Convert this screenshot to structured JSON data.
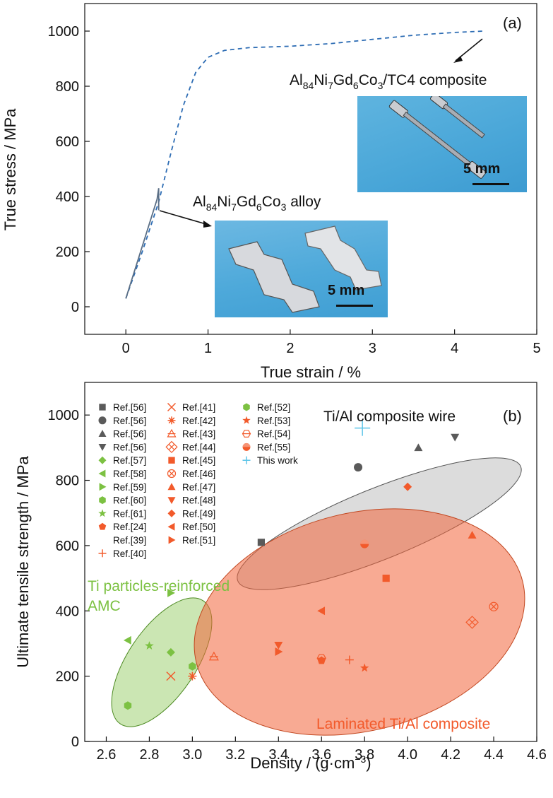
{
  "chart_data": [
    {
      "panel": "(a)",
      "type": "line",
      "xlabel": "True strain / %",
      "ylabel": "True stress / MPa",
      "xlim": [
        -0.5,
        5
      ],
      "ylim": [
        -100,
        1100
      ],
      "xticks": [
        "0",
        "1",
        "2",
        "3",
        "4",
        "5"
      ],
      "yticks": [
        "0",
        "200",
        "400",
        "600",
        "800",
        "1000"
      ],
      "series": [
        {
          "label": "Al84Ni7Gd6Co3/TC4 composite",
          "style": "dashed",
          "color": "#2e6db4",
          "x": [
            0,
            0.2,
            0.4,
            0.55,
            0.7,
            0.85,
            1.0,
            1.2,
            1.5,
            2.0,
            2.5,
            3.0,
            3.5,
            4.0,
            4.35
          ],
          "y": [
            30,
            200,
            380,
            560,
            730,
            850,
            905,
            930,
            940,
            945,
            955,
            970,
            985,
            995,
            1000
          ]
        },
        {
          "label": "Al84Ni7Gd6Co3 alloy",
          "style": "solid",
          "color": "#5a6e85",
          "x": [
            0,
            0.38,
            0.4,
            0.4
          ],
          "y": [
            30,
            390,
            430,
            350
          ]
        }
      ],
      "annotations": {
        "composite_label": {
          "main": "Al",
          "s1": "84",
          "t1": "Ni",
          "s2": "7",
          "t2": "Gd",
          "s3": "6",
          "t3": "Co",
          "s4": "3",
          "tail": "/TC4 composite"
        },
        "alloy_label": {
          "main": "Al",
          "s1": "84",
          "t1": "Ni",
          "s2": "7",
          "t2": "Gd",
          "s3": "6",
          "t3": "Co",
          "s4": "3",
          "tail": " alloy"
        },
        "scale_a": "5 mm",
        "scale_b": "5 mm"
      }
    },
    {
      "panel": "(b)",
      "type": "scatter",
      "xlabel_main": "Density / (g·cm",
      "xlabel_sup": "−3",
      "xlabel_end": ")",
      "ylabel": "Ultimate tensile strength / MPa",
      "xlim": [
        2.5,
        4.6
      ],
      "ylim": [
        0,
        1100
      ],
      "xticks": [
        "2.6",
        "2.8",
        "3.0",
        "3.2",
        "3.4",
        "3.6",
        "3.8",
        "4.0",
        "4.2",
        "4.4",
        "4.6"
      ],
      "yticks": [
        "0",
        "200",
        "400",
        "600",
        "800",
        "1000"
      ],
      "regions": {
        "wire": "Ti/Al composite wire",
        "particles_1": "Ti particles-reinforced",
        "particles_2": "AMC",
        "laminated": "Laminated Ti/Al composite"
      },
      "legend": [
        {
          "name": "Ref.[56]",
          "marker": "square",
          "color": "#5a5a5a"
        },
        {
          "name": "Ref.[56]",
          "marker": "circle",
          "color": "#5a5a5a"
        },
        {
          "name": "Ref.[56]",
          "marker": "tri-up",
          "color": "#5a5a5a"
        },
        {
          "name": "Ref.[56]",
          "marker": "tri-down",
          "color": "#5a5a5a"
        },
        {
          "name": "Ref.[57]",
          "marker": "diamond",
          "color": "#7cc142"
        },
        {
          "name": "Ref.[58]",
          "marker": "tri-left",
          "color": "#7cc142"
        },
        {
          "name": "Ref.[59]",
          "marker": "tri-right",
          "color": "#7cc142"
        },
        {
          "name": "Ref.[60]",
          "marker": "hexagon",
          "color": "#7cc142"
        },
        {
          "name": "Ref.[61]",
          "marker": "star",
          "color": "#7cc142"
        },
        {
          "name": "Ref.[24]",
          "marker": "pentagon",
          "color": "#f25a2b"
        },
        {
          "name": "Ref.[39]",
          "marker": "none",
          "color": "#f25a2b"
        },
        {
          "name": "Ref.[40]",
          "marker": "plus",
          "color": "#f25a2b"
        },
        {
          "name": "Ref.[41]",
          "marker": "x",
          "color": "#f25a2b"
        },
        {
          "name": "Ref.[42]",
          "marker": "asterisk",
          "color": "#f25a2b"
        },
        {
          "name": "Ref.[43]",
          "marker": "tri-plus",
          "color": "#f25a2b"
        },
        {
          "name": "Ref.[44]",
          "marker": "xsquare",
          "color": "#f25a2b"
        },
        {
          "name": "Ref.[45]",
          "marker": "square",
          "color": "#f25a2b"
        },
        {
          "name": "Ref.[46]",
          "marker": "xcircle",
          "color": "#f25a2b"
        },
        {
          "name": "Ref.[47]",
          "marker": "tri-up",
          "color": "#f25a2b"
        },
        {
          "name": "Ref.[48]",
          "marker": "tri-down",
          "color": "#f25a2b"
        },
        {
          "name": "Ref.[49]",
          "marker": "diamond",
          "color": "#f25a2b"
        },
        {
          "name": "Ref.[50]",
          "marker": "tri-left",
          "color": "#f25a2b"
        },
        {
          "name": "Ref.[51]",
          "marker": "tri-right",
          "color": "#f25a2b"
        },
        {
          "name": "Ref.[52]",
          "marker": "hexagon",
          "color": "#7cc142"
        },
        {
          "name": "Ref.[53]",
          "marker": "star",
          "color": "#f25a2b"
        },
        {
          "name": "Ref.[54]",
          "marker": "hexline",
          "color": "#f25a2b"
        },
        {
          "name": "Ref.[55]",
          "marker": "halfcircle",
          "color": "#f25a2b"
        },
        {
          "name": "This work",
          "marker": "plus",
          "color": "#5cc4e8"
        }
      ],
      "points": [
        {
          "x": 3.32,
          "y": 610,
          "marker": "square",
          "color": "#5a5a5a"
        },
        {
          "x": 3.77,
          "y": 840,
          "marker": "circle",
          "color": "#5a5a5a"
        },
        {
          "x": 4.05,
          "y": 900,
          "marker": "tri-up",
          "color": "#5a5a5a"
        },
        {
          "x": 4.22,
          "y": 932,
          "marker": "tri-down",
          "color": "#5a5a5a"
        },
        {
          "x": 3.79,
          "y": 960,
          "marker": "plus",
          "color": "#5cc4e8"
        },
        {
          "x": 4.0,
          "y": 780,
          "marker": "diamond",
          "color": "#f25a2b"
        },
        {
          "x": 2.7,
          "y": 110,
          "marker": "hexagon",
          "color": "#7cc142"
        },
        {
          "x": 2.7,
          "y": 310,
          "marker": "tri-left",
          "color": "#7cc142"
        },
        {
          "x": 2.8,
          "y": 293,
          "marker": "star",
          "color": "#7cc142"
        },
        {
          "x": 2.9,
          "y": 273,
          "marker": "diamond",
          "color": "#7cc142"
        },
        {
          "x": 2.9,
          "y": 455,
          "marker": "tri-right",
          "color": "#7cc142"
        },
        {
          "x": 3.0,
          "y": 230,
          "marker": "hexagon",
          "color": "#7cc142"
        },
        {
          "x": 2.9,
          "y": 200,
          "marker": "x",
          "color": "#f25a2b"
        },
        {
          "x": 3.0,
          "y": 200,
          "marker": "asterisk",
          "color": "#f25a2b"
        },
        {
          "x": 3.1,
          "y": 260,
          "marker": "tri-plus",
          "color": "#f25a2b"
        },
        {
          "x": 3.4,
          "y": 295,
          "marker": "tri-down",
          "color": "#f25a2b"
        },
        {
          "x": 3.4,
          "y": 275,
          "marker": "tri-right",
          "color": "#f25a2b"
        },
        {
          "x": 3.6,
          "y": 400,
          "marker": "tri-left",
          "color": "#f25a2b"
        },
        {
          "x": 3.6,
          "y": 255,
          "marker": "hexline",
          "color": "#f25a2b"
        },
        {
          "x": 3.6,
          "y": 248,
          "marker": "pentagon",
          "color": "#f25a2b"
        },
        {
          "x": 3.73,
          "y": 250,
          "marker": "plus",
          "color": "#f25a2b"
        },
        {
          "x": 3.8,
          "y": 225,
          "marker": "star",
          "color": "#f25a2b"
        },
        {
          "x": 3.8,
          "y": 605,
          "marker": "halfcircle",
          "color": "#f25a2b"
        },
        {
          "x": 3.9,
          "y": 500,
          "marker": "square",
          "color": "#f25a2b"
        },
        {
          "x": 4.3,
          "y": 632,
          "marker": "tri-up",
          "color": "#f25a2b"
        },
        {
          "x": 4.3,
          "y": 365,
          "marker": "xsquare",
          "color": "#f25a2b"
        },
        {
          "x": 4.4,
          "y": 413,
          "marker": "xcircle",
          "color": "#f25a2b"
        }
      ]
    }
  ]
}
